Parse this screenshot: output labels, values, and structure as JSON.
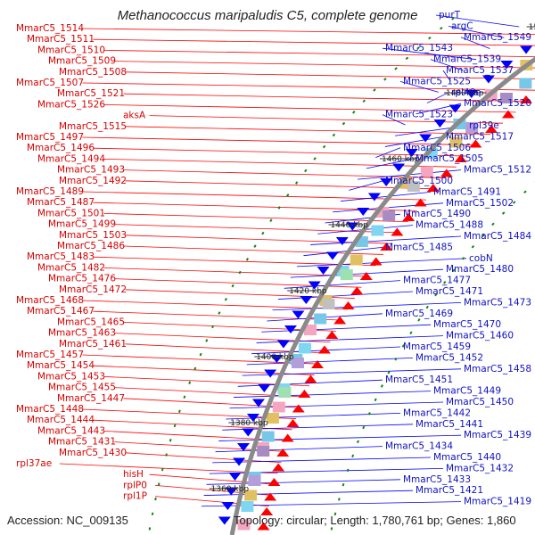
{
  "title": "Methanococcus maripaludis C5, complete genome",
  "footer": {
    "accession": "Accession: NC_009135",
    "topology": "Topology: circular; Length: 1,780,761 bp; Genes: 1,860"
  },
  "colors": {
    "forward": "#ff0000",
    "reverse": "#0000ff",
    "backbone": "#8a8a8a",
    "ticks": "#118811"
  },
  "scale_ticks": [
    {
      "label": "1500 kbp"
    },
    {
      "label": "1480 kbp"
    },
    {
      "label": "1460 kbp"
    },
    {
      "label": "1440 kbp"
    },
    {
      "label": "1420 kbp"
    },
    {
      "label": "1400 kbp"
    },
    {
      "label": "1380 kbp"
    },
    {
      "label": "1360 kbp"
    }
  ],
  "left_labels": [
    "MmarC5_1514",
    "MmarC5_1511",
    "MmarC5_1510",
    "MmarC5_1509",
    "MmarC5_1508",
    "MmarC5_1507",
    "MmarC5_1521",
    "MmarC5_1526",
    "aksA",
    "MmarC5_1515",
    "MmarC5_1497",
    "MmarC5_1496",
    "MmarC5_1494",
    "MmarC5_1493",
    "MmarC5_1492",
    "MmarC5_1489",
    "MmarC5_1487",
    "MmarC5_1501",
    "MmarC5_1499",
    "MmarC5_1503",
    "MmarC5_1486",
    "MmarC5_1483",
    "MmarC5_1482",
    "MmarC5_1476",
    "MmarC5_1472",
    "MmarC5_1468",
    "MmarC5_1467",
    "MmarC5_1465",
    "MmarC5_1463",
    "MmarC5_1461",
    "MmarC5_1457",
    "MmarC5_1454",
    "MmarC5_1453",
    "MmarC5_1455",
    "MmarC5_1447",
    "MmarC5_1448",
    "MmarC5_1444",
    "MmarC5_1443",
    "MmarC5_1431",
    "MmarC5_1430",
    "rpl37ae",
    "hisH",
    "rplP0",
    "rpl1P"
  ],
  "right_labels": [
    "purT",
    "argC",
    "MmarC5_1549",
    "MmarC5_1543",
    "MmarC5_1539",
    "MmarC5_1537",
    "MmarC5_1525",
    "rpl40e",
    "MmarC5_1520",
    "MmarC5_1523",
    "rpl39e",
    "MmarC5_1517",
    "MmarC5_1506",
    "MmarC5_1505",
    "MmarC5_1512",
    "MmarC5_1500",
    "MmarC5_1491",
    "MmarC5_1502",
    "MmarC5_1490",
    "MmarC5_1488",
    "MmarC5_1484",
    "MmarC5_1485",
    "cobN",
    "MmarC5_1480",
    "MmarC5_1477",
    "MmarC5_1471",
    "MmarC5_1473",
    "MmarC5_1469",
    "MmarC5_1470",
    "MmarC5_1460",
    "MmarC5_1459",
    "MmarC5_1452",
    "MmarC5_1458",
    "MmarC5_1451",
    "MmarC5_1449",
    "MmarC5_1450",
    "MmarC5_1442",
    "MmarC5_1441",
    "MmarC5_1439",
    "MmarC5_1434",
    "MmarC5_1440",
    "MmarC5_1432",
    "MmarC5_1433",
    "MmarC5_1421",
    "MmarC5_1419"
  ]
}
